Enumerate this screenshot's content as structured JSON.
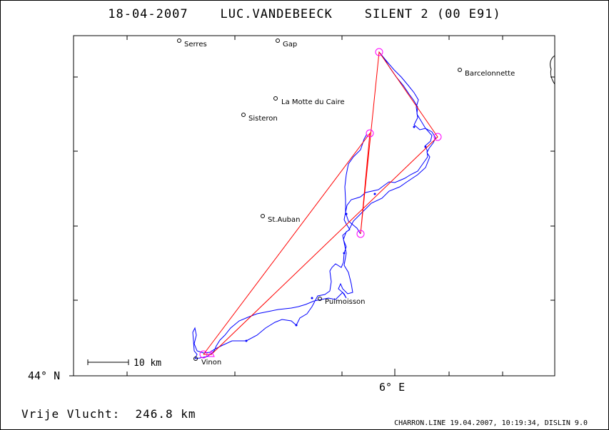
{
  "title": "18-04-2007    LUC.VANDEBEECK    SILENT 2 (00 E91)",
  "flight_distance": "Vrije Vlucht:  246.8 km",
  "footer": "CHARRON.LINE 19.04.2007, 10:19:34, DISLIN 9.0",
  "axis": {
    "lat_label": "44° N",
    "lon_label": "6° E"
  },
  "scale_bar": {
    "label": "10 km",
    "length_km": 10
  },
  "places": [
    {
      "name": "Serres"
    },
    {
      "name": "Gap"
    },
    {
      "name": "Barcelonnette"
    },
    {
      "name": "La Motte du Caire"
    },
    {
      "name": "Sisteron"
    },
    {
      "name": "St.Auban"
    },
    {
      "name": "Puimoisson"
    },
    {
      "name": "Vinon"
    }
  ],
  "colors": {
    "track": "#0000ff",
    "course": "#ff0000",
    "turnpoint": "#ff00ff",
    "frame": "#000000"
  }
}
